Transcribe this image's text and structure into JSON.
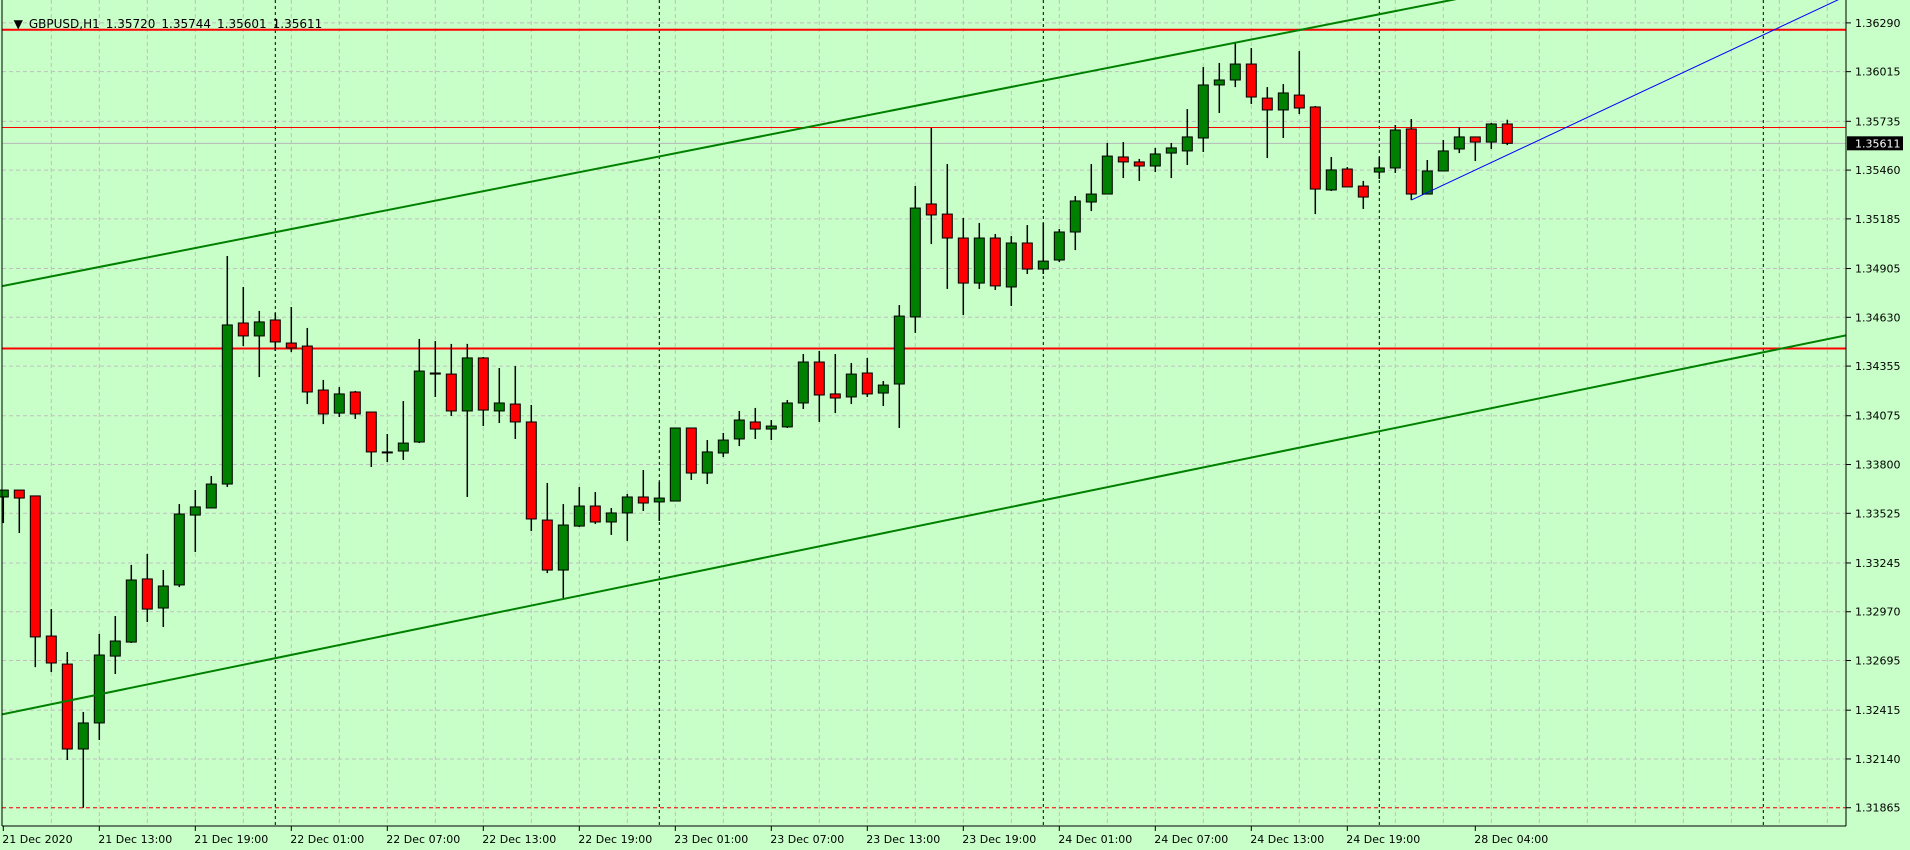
{
  "header": {
    "menu_icon": "triangle-down-icon",
    "symbol": "GBPUSD,H1",
    "open": "1.35720",
    "high": "1.35744",
    "low": "1.35601",
    "close": "1.35611"
  },
  "colors": {
    "background": "#c8ffc8",
    "bull": "#008000",
    "bear": "#ff0000",
    "grid": "#c0c0c0",
    "channel": "#008000",
    "trendline": "#0000ff",
    "level": "#ff0000"
  },
  "chart_data": {
    "type": "candlestick",
    "symbol": "GBPUSD",
    "timeframe": "H1",
    "ylim": [
      1.31762,
      1.36419
    ],
    "grid": true,
    "current_price": "1.35611",
    "y_ticks": [
      "1.36290",
      "1.36015",
      "1.35735",
      "1.35460",
      "1.35185",
      "1.34905",
      "1.34630",
      "1.34355",
      "1.34075",
      "1.33800",
      "1.33525",
      "1.33245",
      "1.32970",
      "1.32695",
      "1.32415",
      "1.32140",
      "1.31865"
    ],
    "x_ticks": [
      {
        "label": "21 Dec 2020",
        "bar": 0
      },
      {
        "label": "21 Dec 13:00",
        "bar": 6
      },
      {
        "label": "21 Dec 19:00",
        "bar": 12
      },
      {
        "label": "22 Dec 01:00",
        "bar": 18
      },
      {
        "label": "22 Dec 07:00",
        "bar": 24
      },
      {
        "label": "22 Dec 13:00",
        "bar": 30
      },
      {
        "label": "22 Dec 19:00",
        "bar": 36
      },
      {
        "label": "23 Dec 01:00",
        "bar": 42
      },
      {
        "label": "23 Dec 07:00",
        "bar": 48
      },
      {
        "label": "23 Dec 13:00",
        "bar": 54
      },
      {
        "label": "23 Dec 19:00",
        "bar": 60
      },
      {
        "label": "24 Dec 01:00",
        "bar": 66
      },
      {
        "label": "24 Dec 07:00",
        "bar": 72
      },
      {
        "label": "24 Dec 13:00",
        "bar": 78
      },
      {
        "label": "24 Dec 19:00",
        "bar": 84
      },
      {
        "label": "28 Dec 04:00",
        "bar": 92
      }
    ],
    "period_separators_bars": [
      17,
      41,
      65,
      86,
      110
    ],
    "ohlc_columns": [
      "open",
      "high",
      "low",
      "close"
    ],
    "ohlc": [
      [
        1.33617,
        1.33656,
        1.3347,
        1.33656
      ],
      [
        1.33656,
        1.33656,
        1.33414,
        1.33611
      ],
      [
        1.33623,
        1.33623,
        1.32658,
        1.32828
      ],
      [
        1.32833,
        1.32985,
        1.3263,
        1.32681
      ],
      [
        1.32675,
        1.32743,
        1.32134,
        1.32196
      ],
      [
        1.32196,
        1.32405,
        1.31865,
        1.32343
      ],
      [
        1.32343,
        1.32845,
        1.32247,
        1.32726
      ],
      [
        1.3272,
        1.32946,
        1.32619,
        1.32805
      ],
      [
        1.32799,
        1.33234,
        1.32794,
        1.33149
      ],
      [
        1.33155,
        1.33296,
        1.32912,
        1.32985
      ],
      [
        1.32991,
        1.33205,
        1.32884,
        1.33115
      ],
      [
        1.33121,
        1.33577,
        1.33109,
        1.33521
      ],
      [
        1.33515,
        1.33656,
        1.33307,
        1.33561
      ],
      [
        1.33555,
        1.33735,
        1.33555,
        1.3369
      ],
      [
        1.3369,
        1.34976,
        1.33673,
        1.34587
      ],
      [
        1.34598,
        1.34801,
        1.34468,
        1.34525
      ],
      [
        1.34525,
        1.34666,
        1.34293,
        1.34604
      ],
      [
        1.34615,
        1.34654,
        1.3444,
        1.34491
      ],
      [
        1.34485,
        1.34688,
        1.34434,
        1.34457
      ],
      [
        1.34468,
        1.3457,
        1.34141,
        1.34209
      ],
      [
        1.3422,
        1.34277,
        1.34028,
        1.34085
      ],
      [
        1.3409,
        1.34237,
        1.34068,
        1.34198
      ],
      [
        1.34209,
        1.34215,
        1.34057,
        1.34085
      ],
      [
        1.34096,
        1.34096,
        1.33786,
        1.33871
      ],
      [
        1.33871,
        1.33972,
        1.33814,
        1.33871
      ],
      [
        1.33876,
        1.34158,
        1.33826,
        1.33921
      ],
      [
        1.33927,
        1.34508,
        1.33921,
        1.34327
      ],
      [
        1.34316,
        1.34496,
        1.34181,
        1.3431
      ],
      [
        1.3431,
        1.3448,
        1.34074,
        1.34102
      ],
      [
        1.34102,
        1.3448,
        1.33617,
        1.34401
      ],
      [
        1.34401,
        1.34406,
        1.34017,
        1.34107
      ],
      [
        1.34102,
        1.34344,
        1.34034,
        1.34147
      ],
      [
        1.34141,
        1.34355,
        1.33944,
        1.3404
      ],
      [
        1.3404,
        1.34136,
        1.33425,
        1.33493
      ],
      [
        1.33487,
        1.33696,
        1.33188,
        1.33205
      ],
      [
        1.33205,
        1.33577,
        1.33042,
        1.33459
      ],
      [
        1.33453,
        1.33673,
        1.33448,
        1.33566
      ],
      [
        1.33566,
        1.33645,
        1.33465,
        1.33476
      ],
      [
        1.33476,
        1.33555,
        1.33403,
        1.33527
      ],
      [
        1.33527,
        1.33634,
        1.33369,
        1.33617
      ],
      [
        1.33617,
        1.33769,
        1.33538,
        1.33583
      ],
      [
        1.33589,
        1.33702,
        1.33482,
        1.33611
      ],
      [
        1.33594,
        1.34006,
        1.33594,
        1.34006
      ],
      [
        1.34006,
        1.34006,
        1.33713,
        1.33752
      ],
      [
        1.33752,
        1.33938,
        1.3369,
        1.33871
      ],
      [
        1.33865,
        1.33978,
        1.33842,
        1.33938
      ],
      [
        1.33944,
        1.34102,
        1.33904,
        1.34051
      ],
      [
        1.3404,
        1.34119,
        1.33944,
        1.34
      ],
      [
        1.34,
        1.34051,
        1.33938,
        1.34017
      ],
      [
        1.34012,
        1.34164,
        1.34006,
        1.34147
      ],
      [
        1.34147,
        1.34423,
        1.34113,
        1.34378
      ],
      [
        1.34378,
        1.3444,
        1.3404,
        1.34192
      ],
      [
        1.34198,
        1.34423,
        1.3409,
        1.34175
      ],
      [
        1.34181,
        1.34372,
        1.34141,
        1.3431
      ],
      [
        1.34316,
        1.34401,
        1.34181,
        1.34198
      ],
      [
        1.34203,
        1.34271,
        1.3413,
        1.34248
      ],
      [
        1.34254,
        1.34699,
        1.34006,
        1.34637
      ],
      [
        1.34632,
        1.3537,
        1.34542,
        1.35246
      ],
      [
        1.35269,
        1.35697,
        1.35043,
        1.35207
      ],
      [
        1.35212,
        1.35494,
        1.3479,
        1.35077
      ],
      [
        1.35077,
        1.3519,
        1.34643,
        1.34823
      ],
      [
        1.34823,
        1.35162,
        1.3479,
        1.35077
      ],
      [
        1.35077,
        1.351,
        1.34784,
        1.34807
      ],
      [
        1.34801,
        1.35088,
        1.34694,
        1.35049
      ],
      [
        1.35049,
        1.3515,
        1.34874,
        1.34902
      ],
      [
        1.34902,
        1.35162,
        1.34874,
        1.34947
      ],
      [
        1.34953,
        1.35128,
        1.34942,
        1.35111
      ],
      [
        1.35111,
        1.35314,
        1.35009,
        1.35286
      ],
      [
        1.3528,
        1.35494,
        1.35229,
        1.35325
      ],
      [
        1.35325,
        1.35613,
        1.35325,
        1.35539
      ],
      [
        1.35534,
        1.35618,
        1.35415,
        1.35506
      ],
      [
        1.35506,
        1.35523,
        1.35399,
        1.35483
      ],
      [
        1.35483,
        1.35585,
        1.35449,
        1.35551
      ],
      [
        1.35556,
        1.35613,
        1.35415,
        1.35585
      ],
      [
        1.35568,
        1.35804,
        1.35489,
        1.35647
      ],
      [
        1.35641,
        1.36041,
        1.35562,
        1.3594
      ],
      [
        1.3594,
        1.36064,
        1.35782,
        1.35968
      ],
      [
        1.35968,
        1.36177,
        1.35928,
        1.36058
      ],
      [
        1.36058,
        1.36148,
        1.35833,
        1.35872
      ],
      [
        1.35866,
        1.35928,
        1.35528,
        1.35799
      ],
      [
        1.35799,
        1.35945,
        1.35641,
        1.35895
      ],
      [
        1.35883,
        1.36131,
        1.35776,
        1.3581
      ],
      [
        1.35816,
        1.35821,
        1.35212,
        1.35353
      ],
      [
        1.35348,
        1.35534,
        1.35342,
        1.35461
      ],
      [
        1.35466,
        1.35477,
        1.35365,
        1.35365
      ],
      [
        1.3537,
        1.35399,
        1.35241,
        1.35308
      ],
      [
        1.35449,
        1.35534,
        1.3541,
        1.35472
      ],
      [
        1.35472,
        1.35714,
        1.35444,
        1.35686
      ],
      [
        1.35692,
        1.35748,
        1.35291,
        1.35325
      ],
      [
        1.35325,
        1.35517,
        1.35325,
        1.35455
      ],
      [
        1.35455,
        1.3563,
        1.35455,
        1.35568
      ],
      [
        1.35579,
        1.35703,
        1.35556,
        1.35647
      ],
      [
        1.35647,
        1.35647,
        1.35511,
        1.35618
      ],
      [
        1.35618,
        1.35726,
        1.35579,
        1.3572
      ],
      [
        1.3572,
        1.35744,
        1.35601,
        1.35611
      ]
    ],
    "horizontal_levels": [
      {
        "price": 1.36251,
        "style": "solid-thick"
      },
      {
        "price": 1.357,
        "style": "solid-thin"
      },
      {
        "price": 1.34454,
        "style": "solid-thick"
      },
      {
        "price": 1.31865,
        "style": "dashed"
      }
    ],
    "trendlines": [
      {
        "name": "channel-upper",
        "color": "#008000",
        "bar1": 0,
        "price1": 1.34807,
        "bar2": 94,
        "price2": 1.36481,
        "extend": "both"
      },
      {
        "name": "channel-lower",
        "color": "#008000",
        "bar1": 0,
        "price1": 1.32393,
        "bar2": 94,
        "price2": 1.34136,
        "extend": "both"
      },
      {
        "name": "trend-ray",
        "color": "#0000ff",
        "bar1": 88,
        "price1": 1.35291,
        "bar2": 94,
        "price2": 1.35545,
        "extend": "right"
      }
    ]
  }
}
